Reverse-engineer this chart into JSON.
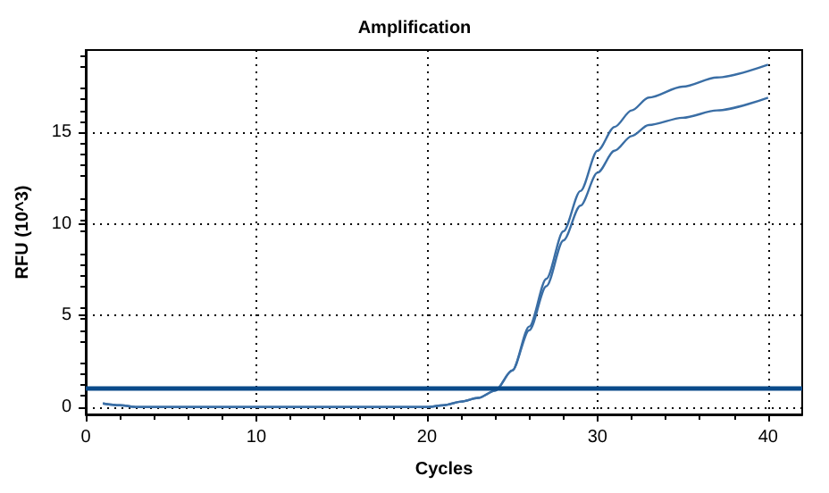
{
  "chart_data": {
    "type": "line",
    "title": "Amplification",
    "xlabel": "Cycles",
    "ylabel": "RFU (10^3)",
    "xlim": [
      0,
      42
    ],
    "xticks": [
      0,
      10,
      20,
      30,
      40
    ],
    "ylim": [
      -0.4,
      19.5
    ],
    "yticks": [
      0,
      5,
      10,
      15
    ],
    "grid": true,
    "marker": "none",
    "line_style": "solid",
    "series": [
      {
        "color": "#3a6ea5",
        "x": [
          1,
          2,
          3,
          5,
          10,
          15,
          19,
          20,
          21,
          22,
          23,
          24,
          25,
          26,
          27,
          28,
          29,
          30,
          31,
          32,
          33,
          35,
          37,
          40
        ],
        "values": [
          0.2,
          0.1,
          0,
          0,
          0,
          0,
          0,
          0,
          0.1,
          0.3,
          0.5,
          0.9,
          2.0,
          4.4,
          7.0,
          9.6,
          11.8,
          14.0,
          15.3,
          16.2,
          16.9,
          17.5,
          18.0,
          18.7
        ]
      },
      {
        "color": "#3a6ea5",
        "x": [
          1,
          2,
          3,
          5,
          10,
          15,
          19,
          20,
          21,
          22,
          23,
          24,
          25,
          26,
          27,
          28,
          29,
          30,
          31,
          32,
          33,
          35,
          37,
          40
        ],
        "values": [
          0.2,
          0.1,
          0,
          0,
          0,
          0,
          0,
          0,
          0.1,
          0.3,
          0.5,
          0.9,
          2.0,
          4.2,
          6.6,
          9.1,
          11.0,
          12.8,
          14.0,
          14.8,
          15.4,
          15.8,
          16.2,
          16.9
        ]
      }
    ],
    "ref_lines": [
      {
        "axis": "y",
        "value": 1.0,
        "label": null,
        "color": "#0a4a8a"
      }
    ]
  }
}
